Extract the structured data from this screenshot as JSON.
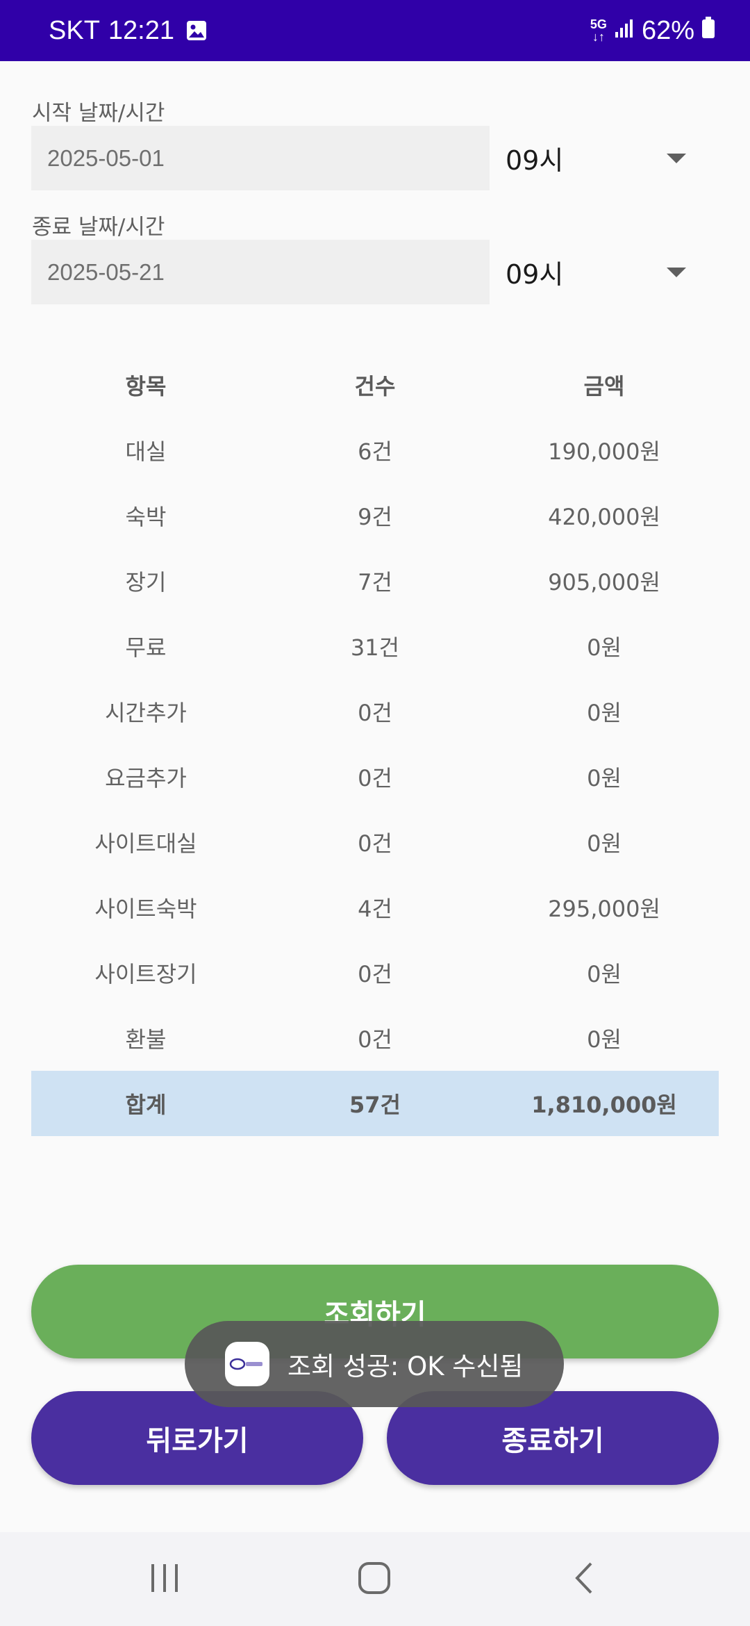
{
  "status_bar": {
    "carrier": "SKT",
    "time": "12:21",
    "network": "5G",
    "battery": "62%"
  },
  "form": {
    "start_label": "시작 날짜/시간",
    "start_date": "2025-05-01",
    "start_hour": "09시",
    "end_label": "종료 날짜/시간",
    "end_date": "2025-05-21",
    "end_hour": "09시"
  },
  "table": {
    "headers": [
      "항목",
      "건수",
      "금액"
    ],
    "rows": [
      [
        "대실",
        "6건",
        "190,000원"
      ],
      [
        "숙박",
        "9건",
        "420,000원"
      ],
      [
        "장기",
        "7건",
        "905,000원"
      ],
      [
        "무료",
        "31건",
        "0원"
      ],
      [
        "시간추가",
        "0건",
        "0원"
      ],
      [
        "요금추가",
        "0건",
        "0원"
      ],
      [
        "사이트대실",
        "0건",
        "0원"
      ],
      [
        "사이트숙박",
        "4건",
        "295,000원"
      ],
      [
        "사이트장기",
        "0건",
        "0원"
      ],
      [
        "환불",
        "0건",
        "0원"
      ]
    ],
    "total": [
      "합계",
      "57건",
      "1,810,000원"
    ]
  },
  "buttons": {
    "query": "조회하기",
    "back": "뒤로가기",
    "exit": "종료하기"
  },
  "toast": {
    "message": "조회 성공: OK 수신됨",
    "icon": "app-logo-icon"
  },
  "colors": {
    "status_bar": "#3000a8",
    "query_button": "#6aaf5a",
    "action_button": "#4a2fa0",
    "total_row": "#cfe2f3"
  }
}
